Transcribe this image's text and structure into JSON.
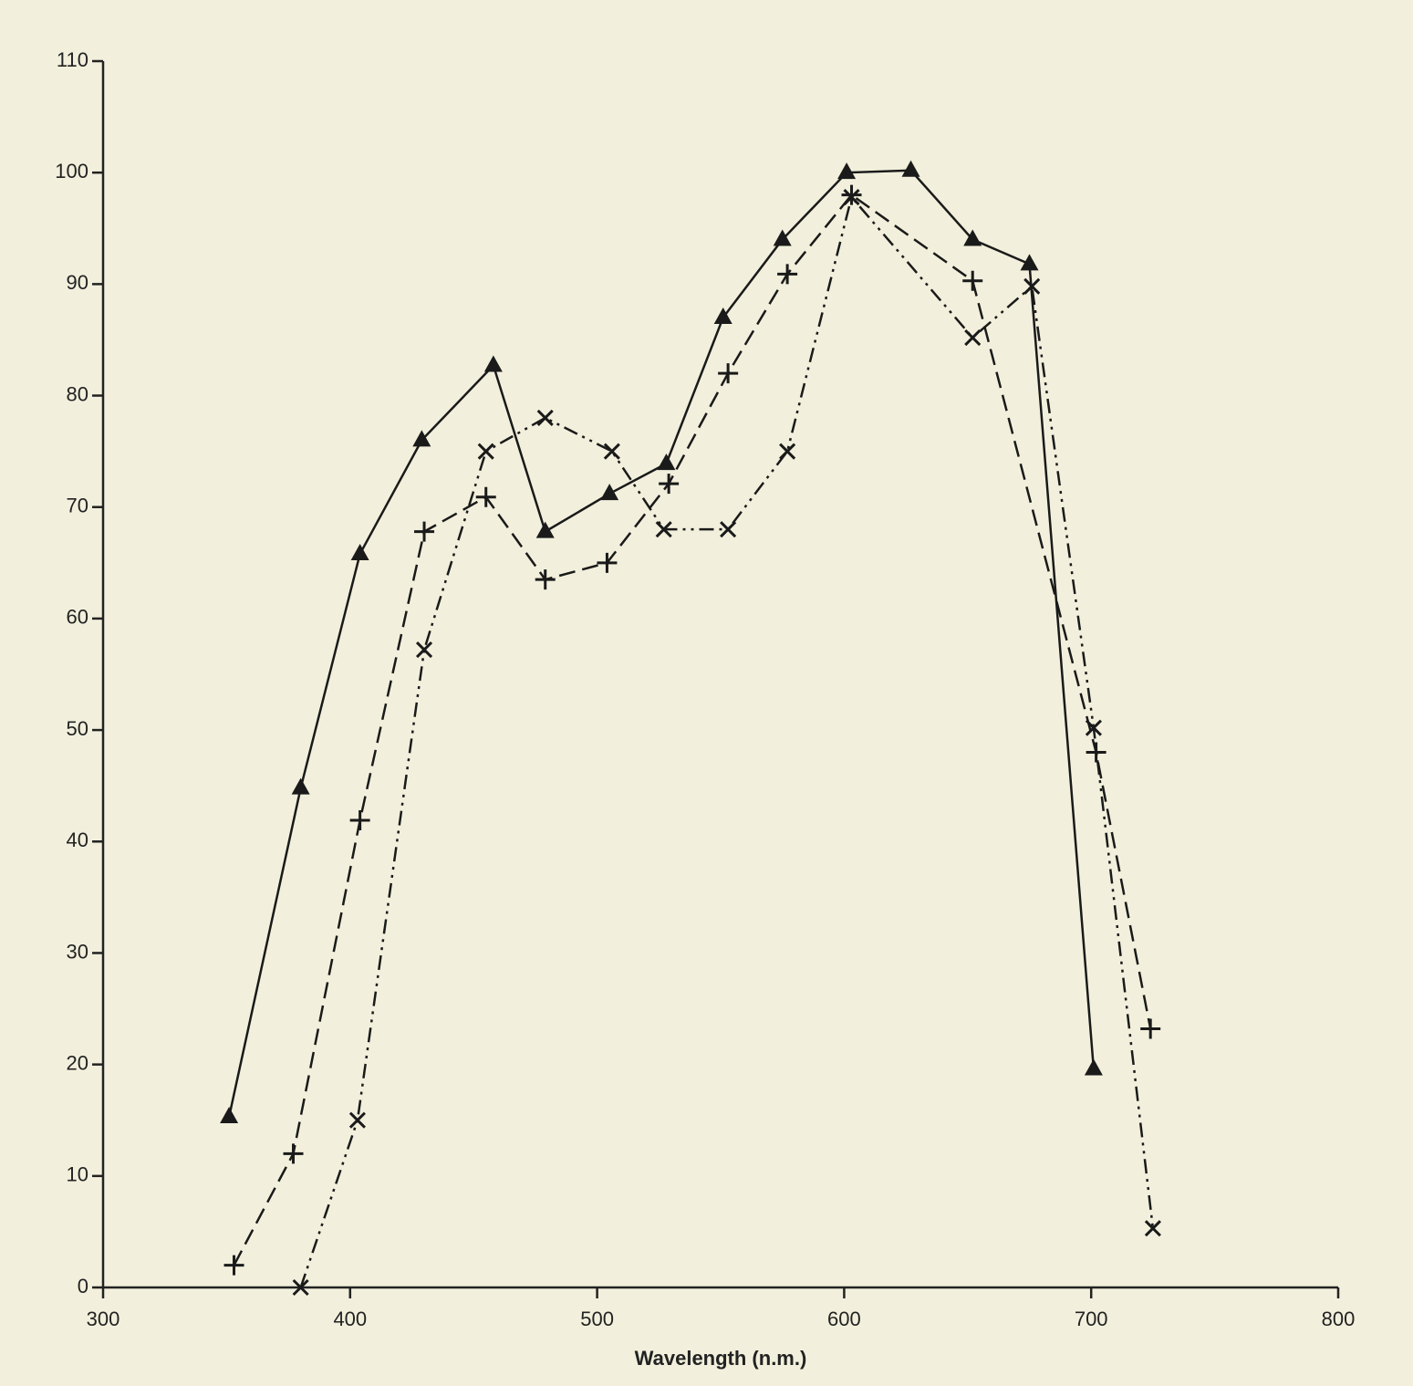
{
  "chart_data": {
    "type": "line",
    "xlabel": "Wavelength (n.m.)",
    "xlim": [
      300,
      800
    ],
    "xticks": [
      300,
      400,
      500,
      600,
      700,
      800
    ],
    "ylim": [
      0,
      110
    ],
    "yticks": [
      0,
      10,
      20,
      30,
      40,
      50,
      60,
      70,
      80,
      90,
      100,
      110
    ],
    "series": [
      {
        "marker": "triangle",
        "dash": "solid",
        "color": "#1a1a1a",
        "x": [
          351,
          380,
          404,
          429,
          458,
          479,
          505,
          528,
          551,
          575,
          601,
          627,
          652,
          675,
          701
        ],
        "values": [
          15.3,
          44.8,
          65.8,
          76,
          82.7,
          67.8,
          71.2,
          73.9,
          87,
          94,
          100,
          100.2,
          94,
          91.8,
          19.6
        ]
      },
      {
        "marker": "plus",
        "dash": "dashed",
        "color": "#1a1a1a",
        "x": [
          353,
          377,
          404,
          430,
          455,
          479,
          504,
          529,
          553,
          577,
          603,
          652,
          702,
          724
        ],
        "values": [
          2,
          12,
          41.9,
          67.8,
          70.9,
          63.5,
          65,
          72.1,
          82,
          90.9,
          98,
          90.3,
          48,
          23.2
        ]
      },
      {
        "marker": "x",
        "dash": "dashdotdot",
        "color": "#1a1a1a",
        "x": [
          380,
          403,
          430,
          455,
          479,
          506,
          527,
          553,
          577,
          603,
          652,
          676,
          701,
          725
        ],
        "values": [
          0,
          15,
          57.2,
          75,
          78,
          75,
          68,
          68,
          75,
          97.8,
          85.2,
          89.8,
          50.2,
          5.3
        ]
      }
    ]
  }
}
